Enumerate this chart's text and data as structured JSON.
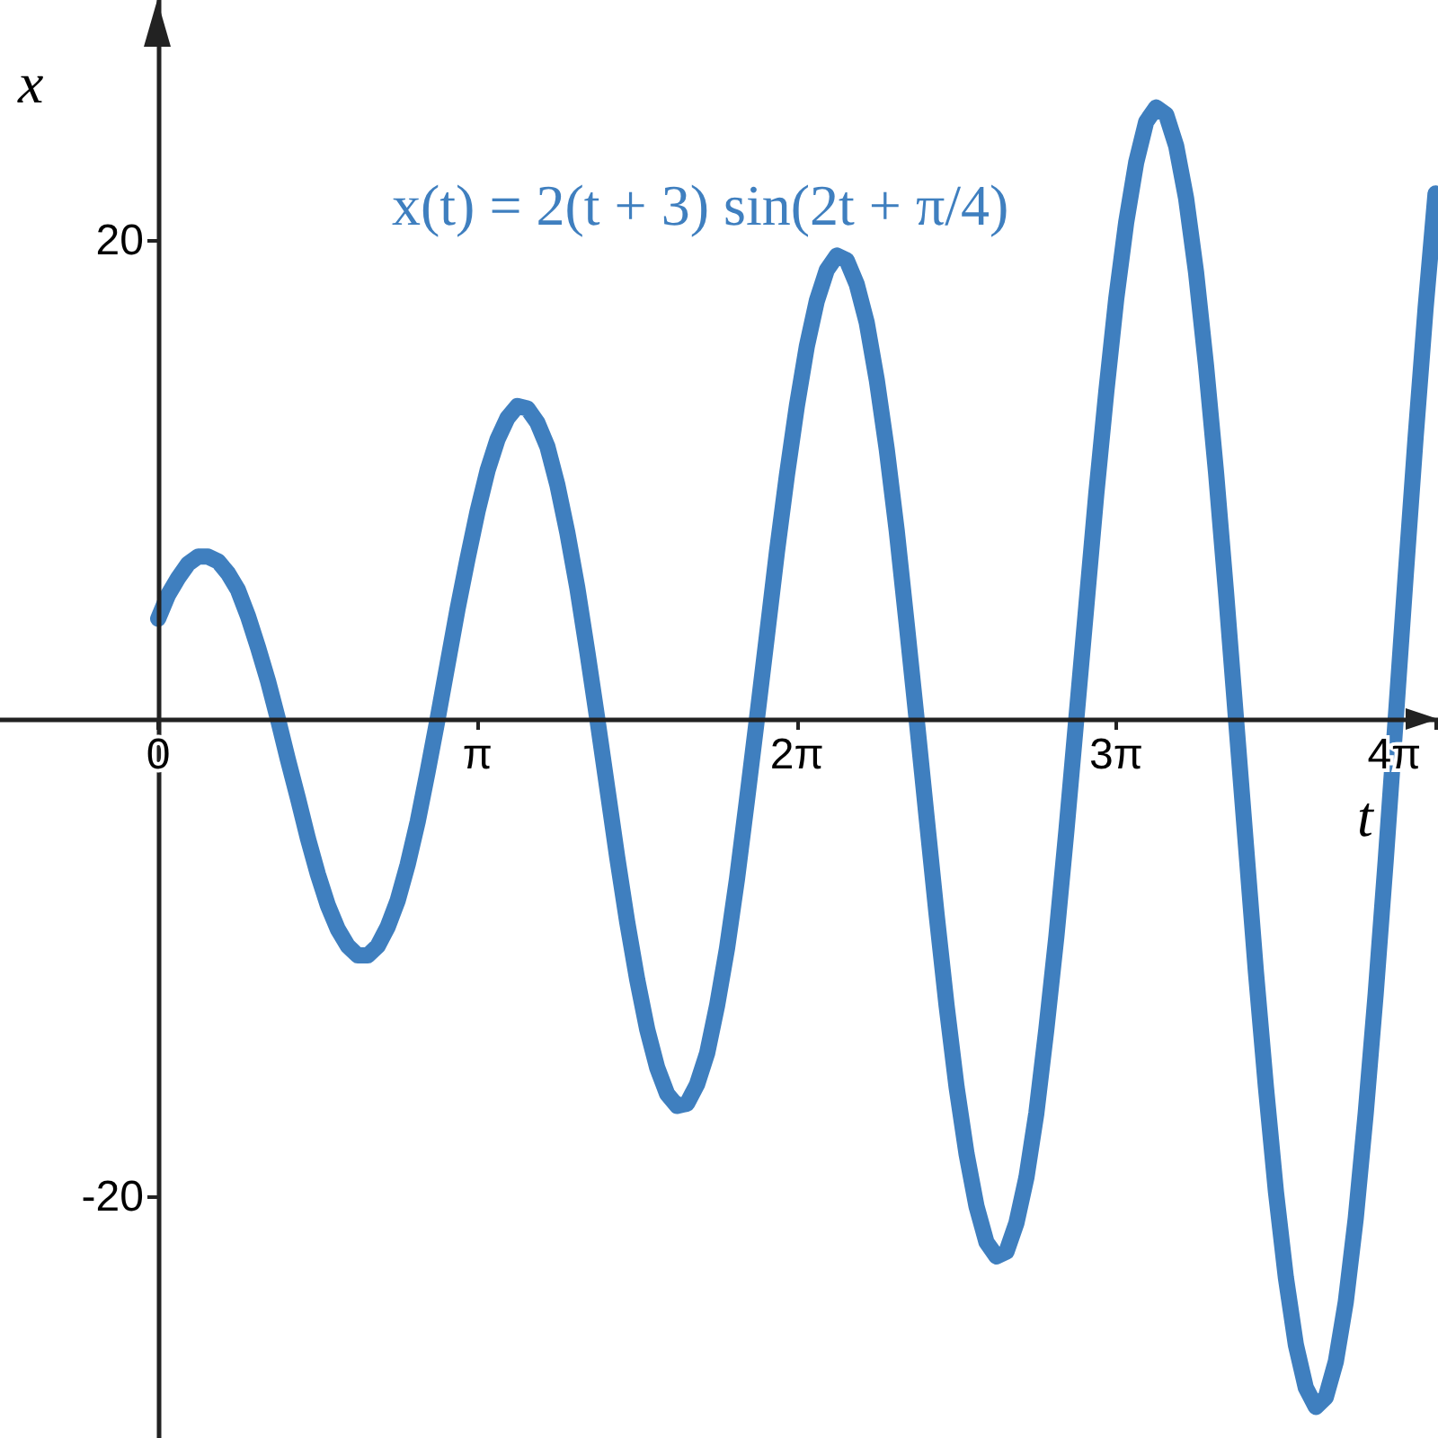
{
  "chart_data": {
    "type": "line",
    "xlabel": "t",
    "ylabel": "x",
    "annotations": [
      "x(t) = 2(t + 3) sin(2t + π/4)"
    ],
    "xlim": [
      -1.556,
      12.59
    ],
    "ylim": [
      -30.1,
      30.1
    ],
    "xticks": [
      {
        "value": 0,
        "label": "0"
      },
      {
        "value": 3.1416,
        "label": "π"
      },
      {
        "value": 6.2832,
        "label": "2π"
      },
      {
        "value": 9.4248,
        "label": "3π"
      },
      {
        "value": 12.5664,
        "label": "4π"
      }
    ],
    "yticks": [
      -20,
      20
    ],
    "color": "#3f7fbf",
    "x": [
      0,
      0.098,
      0.196,
      0.295,
      0.393,
      0.491,
      0.589,
      0.687,
      0.785,
      0.884,
      0.982,
      1.08,
      1.178,
      1.276,
      1.374,
      1.473,
      1.571,
      1.669,
      1.767,
      1.865,
      1.963,
      2.062,
      2.16,
      2.258,
      2.356,
      2.454,
      2.553,
      2.651,
      2.749,
      2.847,
      2.945,
      3.043,
      3.142,
      3.24,
      3.338,
      3.436,
      3.534,
      3.632,
      3.731,
      3.829,
      3.927,
      4.025,
      4.123,
      4.222,
      4.32,
      4.418,
      4.516,
      4.614,
      4.712,
      4.811,
      4.909,
      5.007,
      5.105,
      5.203,
      5.301,
      5.4,
      5.498,
      5.596,
      5.694,
      5.792,
      5.89,
      5.989,
      6.087,
      6.185,
      6.283,
      6.381,
      6.479,
      6.578,
      6.676,
      6.774,
      6.872,
      6.97,
      7.069,
      7.167,
      7.265,
      7.363,
      7.461,
      7.559,
      7.658,
      7.756,
      7.854,
      7.952,
      8.05,
      8.148,
      8.247,
      8.345,
      8.443,
      8.541,
      8.639,
      8.737,
      8.836,
      8.934,
      9.032,
      9.13,
      9.228,
      9.327,
      9.425,
      9.523,
      9.621,
      9.719,
      9.817,
      9.916,
      10.014,
      10.112,
      10.21,
      10.308,
      10.407,
      10.505,
      10.603,
      10.701,
      10.799,
      10.897,
      10.996,
      11.094,
      11.192,
      11.29,
      11.388,
      11.486,
      11.585,
      11.683,
      11.781,
      11.879,
      11.977,
      12.076,
      12.174,
      12.272,
      12.37,
      12.468,
      12.566
    ],
    "values": [
      4.2,
      5.2,
      5.9,
      6.5,
      6.8,
      6.8,
      6.6,
      6.1,
      5.4,
      4.3,
      3.0,
      1.6,
      0,
      -1.7,
      -3.3,
      -5.0,
      -6.5,
      -7.8,
      -8.8,
      -9.5,
      -9.9,
      -9.9,
      -9.5,
      -8.7,
      -7.6,
      -6.1,
      -4.3,
      -2.2,
      0,
      2.3,
      4.6,
      6.7,
      8.7,
      10.4,
      11.7,
      12.6,
      13.1,
      13.0,
      12.4,
      11.4,
      9.8,
      7.8,
      5.5,
      2.8,
      0,
      -2.9,
      -5.8,
      -8.5,
      -10.9,
      -13.0,
      -14.6,
      -15.7,
      -16.2,
      -16.1,
      -15.3,
      -14.0,
      -12.0,
      -9.6,
      -6.7,
      -3.4,
      0,
      3.5,
      7.0,
      10.2,
      13.1,
      15.6,
      17.5,
      18.8,
      19.4,
      19.2,
      18.2,
      16.6,
      14.2,
      11.3,
      7.9,
      4.0,
      0,
      -4.1,
      -8.2,
      -12.0,
      -15.4,
      -18.2,
      -20.4,
      -21.9,
      -22.5,
      -22.3,
      -21.1,
      -19.2,
      -16.5,
      -13.0,
      -9.1,
      -4.7,
      0,
      4.7,
      9.4,
      13.7,
      17.6,
      20.8,
      23.3,
      25.0,
      25.6,
      25.3,
      24.0,
      21.8,
      18.7,
      14.8,
      10.3,
      5.3,
      0,
      -5.3,
      -10.6,
      -15.4,
      -19.8,
      -23.4,
      -26.2,
      -28.0,
      -28.8,
      -28.4,
      -26.9,
      -24.4,
      -20.9,
      -16.5,
      -11.5,
      -5.9,
      0,
      6.0,
      11.8,
      17.2,
      22.0
    ]
  }
}
